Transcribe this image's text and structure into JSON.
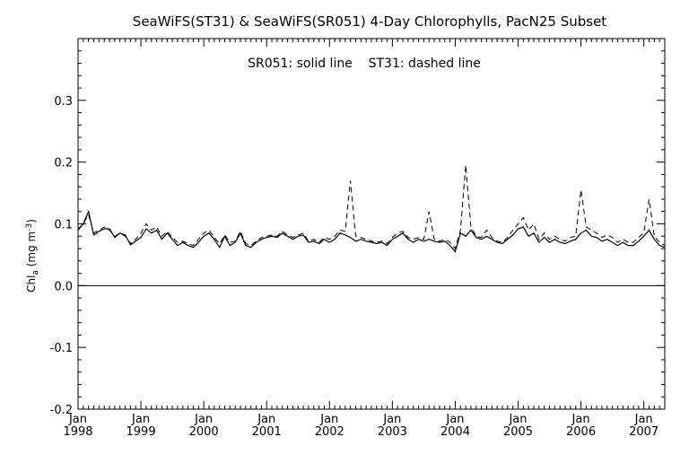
{
  "chart_data": {
    "type": "line",
    "title": "SeaWiFS(ST31) & SeaWiFS(SR051) 4-Day Chlorophylls, PacN25 Subset",
    "annotation": "SR051: solid line    ST31: dashed line",
    "ylabel_main": "Chl",
    "ylabel_sub": "a",
    "ylabel_units_open": " (mg m",
    "ylabel_units_sup": "-3",
    "ylabel_units_close": ")",
    "xlabel": "",
    "ylim": [
      -0.2,
      0.4
    ],
    "xlim": [
      "1998-01",
      "2007-05"
    ],
    "grid": false,
    "zero_line": 0.0,
    "yticks": [
      "-0.2",
      "-0.1",
      "0.0",
      "0.1",
      "0.2",
      "0.3"
    ],
    "xtick_months": [
      "Jan",
      "Jan",
      "Jan",
      "Jan",
      "Jan",
      "Jan",
      "Jan",
      "Jan",
      "Jan",
      "Jan"
    ],
    "xtick_years": [
      "1998",
      "1999",
      "2000",
      "2001",
      "2002",
      "2003",
      "2004",
      "2005",
      "2006",
      "2007"
    ],
    "series": [
      {
        "name": "SR051",
        "line_style": "solid",
        "points": [
          [
            "1998-01-01",
            0.09
          ],
          [
            "1998-02-01",
            0.1
          ],
          [
            "1998-03-01",
            0.12
          ],
          [
            "1998-04-01",
            0.082
          ],
          [
            "1998-05-01",
            0.088
          ],
          [
            "1998-06-01",
            0.092
          ],
          [
            "1998-07-01",
            0.092
          ],
          [
            "1998-08-01",
            0.078
          ],
          [
            "1998-09-01",
            0.085
          ],
          [
            "1998-10-01",
            0.082
          ],
          [
            "1998-11-01",
            0.066
          ],
          [
            "1998-12-01",
            0.072
          ],
          [
            "1999-01-01",
            0.078
          ],
          [
            "1999-02-01",
            0.092
          ],
          [
            "1999-03-01",
            0.085
          ],
          [
            "1999-04-01",
            0.09
          ],
          [
            "1999-05-01",
            0.075
          ],
          [
            "1999-06-01",
            0.085
          ],
          [
            "1999-07-01",
            0.075
          ],
          [
            "1999-08-01",
            0.065
          ],
          [
            "1999-09-01",
            0.07
          ],
          [
            "1999-10-01",
            0.065
          ],
          [
            "1999-11-01",
            0.062
          ],
          [
            "1999-12-01",
            0.07
          ],
          [
            "2000-01-01",
            0.08
          ],
          [
            "2000-02-01",
            0.085
          ],
          [
            "2000-03-01",
            0.075
          ],
          [
            "2000-04-01",
            0.062
          ],
          [
            "2000-05-01",
            0.08
          ],
          [
            "2000-06-01",
            0.065
          ],
          [
            "2000-07-01",
            0.07
          ],
          [
            "2000-08-01",
            0.085
          ],
          [
            "2000-09-01",
            0.065
          ],
          [
            "2000-10-01",
            0.062
          ],
          [
            "2000-11-01",
            0.07
          ],
          [
            "2000-12-01",
            0.075
          ],
          [
            "2001-01-01",
            0.078
          ],
          [
            "2001-02-01",
            0.08
          ],
          [
            "2001-03-01",
            0.078
          ],
          [
            "2001-04-01",
            0.085
          ],
          [
            "2001-05-01",
            0.08
          ],
          [
            "2001-06-01",
            0.075
          ],
          [
            "2001-07-01",
            0.08
          ],
          [
            "2001-08-01",
            0.082
          ],
          [
            "2001-09-01",
            0.07
          ],
          [
            "2001-10-01",
            0.072
          ],
          [
            "2001-11-01",
            0.068
          ],
          [
            "2001-12-01",
            0.075
          ],
          [
            "2002-01-01",
            0.07
          ],
          [
            "2002-02-01",
            0.075
          ],
          [
            "2002-03-01",
            0.085
          ],
          [
            "2002-04-01",
            0.082
          ],
          [
            "2002-05-01",
            0.078
          ],
          [
            "2002-06-01",
            0.072
          ],
          [
            "2002-07-01",
            0.075
          ],
          [
            "2002-08-01",
            0.072
          ],
          [
            "2002-09-01",
            0.07
          ],
          [
            "2002-10-01",
            0.068
          ],
          [
            "2002-11-01",
            0.07
          ],
          [
            "2002-12-01",
            0.065
          ],
          [
            "2003-01-01",
            0.075
          ],
          [
            "2003-02-01",
            0.08
          ],
          [
            "2003-03-01",
            0.085
          ],
          [
            "2003-04-01",
            0.075
          ],
          [
            "2003-05-01",
            0.07
          ],
          [
            "2003-06-01",
            0.075
          ],
          [
            "2003-07-01",
            0.072
          ],
          [
            "2003-08-01",
            0.075
          ],
          [
            "2003-09-01",
            0.072
          ],
          [
            "2003-10-01",
            0.07
          ],
          [
            "2003-11-01",
            0.072
          ],
          [
            "2003-12-01",
            0.065
          ],
          [
            "2004-01-01",
            0.055
          ],
          [
            "2004-02-01",
            0.085
          ],
          [
            "2004-03-01",
            0.08
          ],
          [
            "2004-04-01",
            0.09
          ],
          [
            "2004-05-01",
            0.078
          ],
          [
            "2004-06-01",
            0.075
          ],
          [
            "2004-07-01",
            0.08
          ],
          [
            "2004-08-01",
            0.075
          ],
          [
            "2004-09-01",
            0.07
          ],
          [
            "2004-10-01",
            0.068
          ],
          [
            "2004-11-01",
            0.075
          ],
          [
            "2004-12-01",
            0.082
          ],
          [
            "2005-01-01",
            0.092
          ],
          [
            "2005-02-01",
            0.095
          ],
          [
            "2005-03-01",
            0.08
          ],
          [
            "2005-04-01",
            0.085
          ],
          [
            "2005-05-01",
            0.07
          ],
          [
            "2005-06-01",
            0.078
          ],
          [
            "2005-07-01",
            0.07
          ],
          [
            "2005-08-01",
            0.075
          ],
          [
            "2005-09-01",
            0.07
          ],
          [
            "2005-10-01",
            0.068
          ],
          [
            "2005-11-01",
            0.072
          ],
          [
            "2005-12-01",
            0.075
          ],
          [
            "2006-01-01",
            0.085
          ],
          [
            "2006-02-01",
            0.09
          ],
          [
            "2006-03-01",
            0.08
          ],
          [
            "2006-04-01",
            0.078
          ],
          [
            "2006-05-01",
            0.072
          ],
          [
            "2006-06-01",
            0.075
          ],
          [
            "2006-07-01",
            0.07
          ],
          [
            "2006-08-01",
            0.065
          ],
          [
            "2006-09-01",
            0.07
          ],
          [
            "2006-10-01",
            0.065
          ],
          [
            "2006-11-01",
            0.065
          ],
          [
            "2006-12-01",
            0.072
          ],
          [
            "2007-01-01",
            0.08
          ],
          [
            "2007-02-01",
            0.09
          ],
          [
            "2007-03-01",
            0.075
          ],
          [
            "2007-04-01",
            0.065
          ],
          [
            "2007-05-01",
            0.062
          ]
        ]
      },
      {
        "name": "ST31",
        "line_style": "dashed",
        "points": [
          [
            "1998-01-01",
            0.092
          ],
          [
            "1998-02-01",
            0.1
          ],
          [
            "1998-03-01",
            0.115
          ],
          [
            "1998-04-01",
            0.085
          ],
          [
            "1998-05-01",
            0.09
          ],
          [
            "1998-06-01",
            0.095
          ],
          [
            "1998-07-01",
            0.09
          ],
          [
            "1998-08-01",
            0.08
          ],
          [
            "1998-09-01",
            0.085
          ],
          [
            "1998-10-01",
            0.08
          ],
          [
            "1998-11-01",
            0.068
          ],
          [
            "1998-12-01",
            0.075
          ],
          [
            "1999-01-01",
            0.085
          ],
          [
            "1999-02-01",
            0.1
          ],
          [
            "1999-03-01",
            0.09
          ],
          [
            "1999-04-01",
            0.095
          ],
          [
            "1999-05-01",
            0.08
          ],
          [
            "1999-06-01",
            0.088
          ],
          [
            "1999-07-01",
            0.078
          ],
          [
            "1999-08-01",
            0.07
          ],
          [
            "1999-09-01",
            0.072
          ],
          [
            "1999-10-01",
            0.068
          ],
          [
            "1999-11-01",
            0.065
          ],
          [
            "1999-12-01",
            0.075
          ],
          [
            "2000-01-01",
            0.085
          ],
          [
            "2000-02-01",
            0.09
          ],
          [
            "2000-03-01",
            0.078
          ],
          [
            "2000-04-01",
            0.068
          ],
          [
            "2000-05-01",
            0.082
          ],
          [
            "2000-06-01",
            0.07
          ],
          [
            "2000-07-01",
            0.072
          ],
          [
            "2000-08-01",
            0.088
          ],
          [
            "2000-09-01",
            0.068
          ],
          [
            "2000-10-01",
            0.065
          ],
          [
            "2000-11-01",
            0.072
          ],
          [
            "2000-12-01",
            0.078
          ],
          [
            "2001-01-01",
            0.08
          ],
          [
            "2001-02-01",
            0.082
          ],
          [
            "2001-03-01",
            0.08
          ],
          [
            "2001-04-01",
            0.088
          ],
          [
            "2001-05-01",
            0.082
          ],
          [
            "2001-06-01",
            0.078
          ],
          [
            "2001-07-01",
            0.082
          ],
          [
            "2001-08-01",
            0.085
          ],
          [
            "2001-09-01",
            0.072
          ],
          [
            "2001-10-01",
            0.075
          ],
          [
            "2001-11-01",
            0.07
          ],
          [
            "2001-12-01",
            0.078
          ],
          [
            "2002-01-01",
            0.075
          ],
          [
            "2002-02-01",
            0.08
          ],
          [
            "2002-03-01",
            0.09
          ],
          [
            "2002-04-01",
            0.088
          ],
          [
            "2002-05-01",
            0.17
          ],
          [
            "2002-06-01",
            0.08
          ],
          [
            "2002-07-01",
            0.078
          ],
          [
            "2002-08-01",
            0.075
          ],
          [
            "2002-09-01",
            0.072
          ],
          [
            "2002-10-01",
            0.07
          ],
          [
            "2002-11-01",
            0.072
          ],
          [
            "2002-12-01",
            0.068
          ],
          [
            "2003-01-01",
            0.078
          ],
          [
            "2003-02-01",
            0.085
          ],
          [
            "2003-03-01",
            0.088
          ],
          [
            "2003-04-01",
            0.078
          ],
          [
            "2003-05-01",
            0.075
          ],
          [
            "2003-06-01",
            0.078
          ],
          [
            "2003-07-01",
            0.075
          ],
          [
            "2003-08-01",
            0.12
          ],
          [
            "2003-09-01",
            0.075
          ],
          [
            "2003-10-01",
            0.072
          ],
          [
            "2003-11-01",
            0.075
          ],
          [
            "2003-12-01",
            0.07
          ],
          [
            "2004-01-01",
            0.06
          ],
          [
            "2004-02-01",
            0.09
          ],
          [
            "2004-03-01",
            0.195
          ],
          [
            "2004-04-01",
            0.095
          ],
          [
            "2004-05-01",
            0.08
          ],
          [
            "2004-06-01",
            0.078
          ],
          [
            "2004-07-01",
            0.09
          ],
          [
            "2004-08-01",
            0.078
          ],
          [
            "2004-09-01",
            0.072
          ],
          [
            "2004-10-01",
            0.07
          ],
          [
            "2004-11-01",
            0.078
          ],
          [
            "2004-12-01",
            0.09
          ],
          [
            "2005-01-01",
            0.1
          ],
          [
            "2005-02-01",
            0.11
          ],
          [
            "2005-03-01",
            0.09
          ],
          [
            "2005-04-01",
            0.1
          ],
          [
            "2005-05-01",
            0.075
          ],
          [
            "2005-06-01",
            0.085
          ],
          [
            "2005-07-01",
            0.075
          ],
          [
            "2005-08-01",
            0.08
          ],
          [
            "2005-09-01",
            0.075
          ],
          [
            "2005-10-01",
            0.072
          ],
          [
            "2005-11-01",
            0.078
          ],
          [
            "2005-12-01",
            0.08
          ],
          [
            "2006-01-01",
            0.155
          ],
          [
            "2006-02-01",
            0.095
          ],
          [
            "2006-03-01",
            0.09
          ],
          [
            "2006-04-01",
            0.085
          ],
          [
            "2006-05-01",
            0.078
          ],
          [
            "2006-06-01",
            0.082
          ],
          [
            "2006-07-01",
            0.078
          ],
          [
            "2006-08-01",
            0.07
          ],
          [
            "2006-09-01",
            0.075
          ],
          [
            "2006-10-01",
            0.07
          ],
          [
            "2006-11-01",
            0.07
          ],
          [
            "2006-12-01",
            0.078
          ],
          [
            "2007-01-01",
            0.085
          ],
          [
            "2007-02-01",
            0.14
          ],
          [
            "2007-03-01",
            0.08
          ],
          [
            "2007-04-01",
            0.07
          ],
          [
            "2007-05-01",
            0.065
          ]
        ]
      }
    ]
  }
}
